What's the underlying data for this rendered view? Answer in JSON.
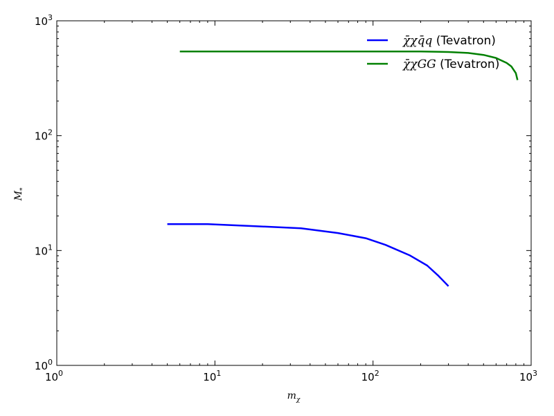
{
  "chart_data": {
    "type": "line",
    "x_scale": "log",
    "y_scale": "log",
    "xlim": [
      1,
      1000
    ],
    "ylim": [
      1,
      1000
    ],
    "grid": false,
    "legend_position": "top-right",
    "xlabel": {
      "base": "m",
      "sub": "χ"
    },
    "ylabel": {
      "base": "M",
      "sub": "*"
    },
    "x_ticks": [
      {
        "value": 1,
        "base": "10",
        "exp": "0"
      },
      {
        "value": 10,
        "base": "10",
        "exp": "1"
      },
      {
        "value": 100,
        "base": "10",
        "exp": "2"
      },
      {
        "value": 1000,
        "base": "10",
        "exp": "3"
      }
    ],
    "y_ticks": [
      {
        "value": 1,
        "base": "10",
        "exp": "0"
      },
      {
        "value": 10,
        "base": "10",
        "exp": "1"
      },
      {
        "value": 100,
        "base": "10",
        "exp": "2"
      },
      {
        "value": 1000,
        "base": "10",
        "exp": "3"
      }
    ],
    "series": [
      {
        "name": "χ̄χq̄q (Tevatron)",
        "legend_math": "χ̄χq̄q",
        "legend_text": " (Tevatron)",
        "color": "#0000ff",
        "x": [
          5,
          9,
          18,
          35,
          60,
          90,
          120,
          170,
          220,
          260,
          300
        ],
        "y": [
          17,
          17,
          16.3,
          15.6,
          14.2,
          12.8,
          11.2,
          9.1,
          7.4,
          6.0,
          4.9
        ]
      },
      {
        "name": "χ̄χGG (Tevatron)",
        "legend_math": "χ̄χGG",
        "legend_text": " (Tevatron)",
        "color": "#008000",
        "x": [
          6,
          20,
          100,
          200,
          300,
          400,
          500,
          600,
          700,
          750,
          800,
          820
        ],
        "y": [
          540,
          540,
          540,
          540,
          535,
          525,
          505,
          475,
          430,
          400,
          350,
          305
        ]
      }
    ]
  }
}
